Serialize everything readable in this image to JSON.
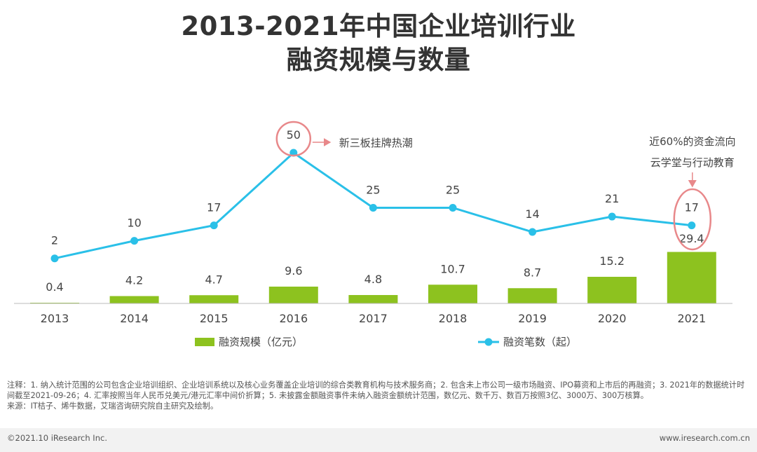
{
  "title_lines": [
    "2013-2021年中国企业培训行业",
    "融资规模与数量"
  ],
  "chart_data": {
    "type": "bar+line",
    "categories": [
      "2013",
      "2014",
      "2015",
      "2016",
      "2017",
      "2018",
      "2019",
      "2020",
      "2021"
    ],
    "series": [
      {
        "name": "融资规模（亿元）",
        "type": "bar",
        "color": "#8dc21f",
        "values": [
          0.4,
          4.2,
          4.7,
          9.6,
          4.8,
          10.7,
          8.7,
          15.2,
          29.4
        ]
      },
      {
        "name": "融资笔数（起）",
        "type": "line",
        "color": "#2ac0e8",
        "values": [
          2,
          10,
          17,
          50,
          25,
          25,
          14,
          21,
          17
        ]
      }
    ],
    "annotations": [
      {
        "category": "2016",
        "text": "新三板挂牌热潮"
      },
      {
        "category": "2021",
        "lines": [
          "近60%的资金流向",
          "云学堂与行动教育"
        ]
      }
    ],
    "highlight_color": "#e8888a",
    "legend_position": "bottom"
  },
  "notes": [
    "注释：1. 纳入统计范围的公司包含企业培训组织、企业培训系统以及核心业务覆盖企业培训的综合类教育机构与技术服务商；2. 包含未上市公司一级市场融资、IPO募资和上市后的再融资；3. 2021年的数据统计时间截至2021-09-26；4. 汇率按照当年人民币兑美元/港元汇率中间价折算；5. 未披露金额融资事件未纳入融资金额统计范围，数亿元、数千万、数百万按照3亿、3000万、300万核算。",
    "来源：IT桔子、烯牛数据，艾瑞咨询研究院自主研究及绘制。"
  ],
  "footer": {
    "copyright": "©2021.10 iResearch Inc.",
    "website": "www.iresearch.com.cn"
  }
}
